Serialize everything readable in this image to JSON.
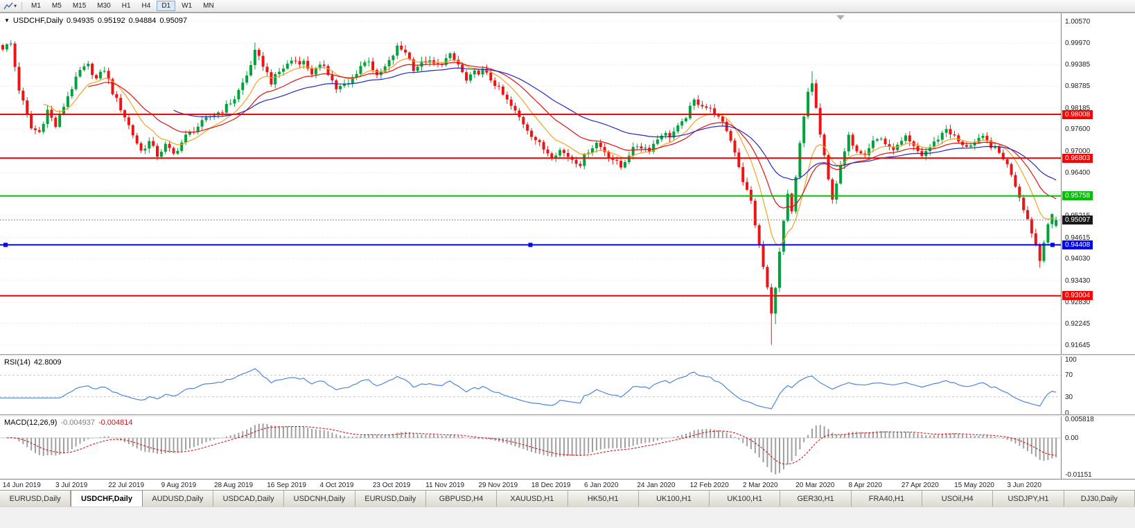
{
  "toolbar": {
    "timeframes": [
      "M1",
      "M5",
      "M15",
      "M30",
      "H1",
      "H4",
      "D1",
      "W1",
      "MN"
    ],
    "active": "D1"
  },
  "chart": {
    "header": {
      "menu_icon": "▼",
      "symbol": "USDCHF,Daily",
      "open": "0.94935",
      "high": "0.95192",
      "low": "0.94884",
      "close": "0.95097"
    },
    "horizontal_lines": [
      {
        "label": "0.98008",
        "price": 0.98008,
        "color": "#ff0000",
        "selected": false
      },
      {
        "label": "0.96803",
        "price": 0.96803,
        "color": "#ff0000",
        "selected": false
      },
      {
        "label": "0.95758",
        "price": 0.95758,
        "color": "#00c000",
        "selected": false
      },
      {
        "label": "0.94408",
        "price": 0.94408,
        "color": "#0000ff",
        "selected": true
      },
      {
        "label": "0.93004",
        "price": 0.93004,
        "color": "#ff0000",
        "selected": false
      }
    ],
    "bid": {
      "label": "0.95097",
      "price": 0.95097,
      "badge_color": "#1a1a1a"
    },
    "colors": {
      "up": "#00a23b",
      "down": "#ee1414",
      "grid": "#dcdcdc",
      "bid_line": "#8a8a8a"
    }
  },
  "chart_data": {
    "type": "candlestick",
    "title": "USDCHF,Daily",
    "ylim": [
      0.91645,
      1.0057
    ],
    "y_tick_labels": [
      "1.00570",
      "0.99970",
      "0.99385",
      "0.98785",
      "0.98185",
      "0.97600",
      "0.97000",
      "0.96400",
      "0.95815",
      "0.95215",
      "0.94615",
      "0.94030",
      "0.93430",
      "0.92830",
      "0.92245",
      "0.91645"
    ],
    "x_tick_labels": [
      "14 Jun 2019",
      "3 Jul 2019",
      "22 Jul 2019",
      "9 Aug 2019",
      "28 Aug 2019",
      "16 Sep 2019",
      "4 Oct 2019",
      "23 Oct 2019",
      "11 Nov 2019",
      "29 Nov 2019",
      "18 Dec 2019",
      "6 Jan 2020",
      "24 Jan 2020",
      "12 Feb 2020",
      "2 Mar 2020",
      "20 Mar 2020",
      "8 Apr 2020",
      "27 Apr 2020",
      "15 May 2020",
      "3 Jun 2020"
    ],
    "num_candles": 260,
    "x_label_first_candle": 2,
    "x_label_candle_step": 13,
    "close_path": [
      [
        0,
        0.9985
      ],
      [
        2,
        0.9995
      ],
      [
        4,
        0.987
      ],
      [
        7,
        0.9762
      ],
      [
        9,
        0.9752
      ],
      [
        11,
        0.9812
      ],
      [
        13,
        0.9768
      ],
      [
        16,
        0.9852
      ],
      [
        19,
        0.992
      ],
      [
        21,
        0.9935
      ],
      [
        23,
        0.9898
      ],
      [
        25,
        0.9925
      ],
      [
        27,
        0.9862
      ],
      [
        30,
        0.9795
      ],
      [
        32,
        0.9745
      ],
      [
        34,
        0.97
      ],
      [
        36,
        0.9725
      ],
      [
        38,
        0.9688
      ],
      [
        40,
        0.9715
      ],
      [
        42,
        0.969
      ],
      [
        45,
        0.974
      ],
      [
        48,
        0.9768
      ],
      [
        51,
        0.9795
      ],
      [
        54,
        0.9812
      ],
      [
        57,
        0.9845
      ],
      [
        60,
        0.9908
      ],
      [
        62,
        0.9972
      ],
      [
        64,
        0.9938
      ],
      [
        66,
        0.989
      ],
      [
        68,
        0.9918
      ],
      [
        71,
        0.995
      ],
      [
        74,
        0.9945
      ],
      [
        76,
        0.9915
      ],
      [
        79,
        0.9938
      ],
      [
        82,
        0.9872
      ],
      [
        85,
        0.9885
      ],
      [
        88,
        0.9935
      ],
      [
        90,
        0.9952
      ],
      [
        92,
        0.9902
      ],
      [
        95,
        0.9945
      ],
      [
        97,
        0.9985
      ],
      [
        99,
        0.9975
      ],
      [
        101,
        0.9928
      ],
      [
        104,
        0.9948
      ],
      [
        107,
        0.9935
      ],
      [
        110,
        0.9962
      ],
      [
        112,
        0.9938
      ],
      [
        114,
        0.9892
      ],
      [
        116,
        0.9915
      ],
      [
        118,
        0.9922
      ],
      [
        121,
        0.9885
      ],
      [
        124,
        0.9838
      ],
      [
        127,
        0.9792
      ],
      [
        130,
        0.9745
      ],
      [
        133,
        0.9705
      ],
      [
        135,
        0.9688
      ],
      [
        137,
        0.9702
      ],
      [
        140,
        0.9678
      ],
      [
        142,
        0.9665
      ],
      [
        144,
        0.9702
      ],
      [
        146,
        0.9722
      ],
      [
        149,
        0.9688
      ],
      [
        152,
        0.9655
      ],
      [
        154,
        0.9692
      ],
      [
        156,
        0.9715
      ],
      [
        159,
        0.9705
      ],
      [
        162,
        0.9748
      ],
      [
        164,
        0.9742
      ],
      [
        167,
        0.9775
      ],
      [
        170,
        0.9838
      ],
      [
        172,
        0.9828
      ],
      [
        175,
        0.9805
      ],
      [
        178,
        0.9758
      ],
      [
        180,
        0.97
      ],
      [
        182,
        0.9618
      ],
      [
        184,
        0.956
      ],
      [
        186,
        0.9438
      ],
      [
        188,
        0.9322
      ],
      [
        189,
        0.9248
      ],
      [
        190,
        0.933
      ],
      [
        192,
        0.9505
      ],
      [
        193,
        0.9575
      ],
      [
        194,
        0.9528
      ],
      [
        196,
        0.9718
      ],
      [
        198,
        0.9862
      ],
      [
        199,
        0.9888
      ],
      [
        201,
        0.9745
      ],
      [
        203,
        0.9618
      ],
      [
        204,
        0.9572
      ],
      [
        206,
        0.9655
      ],
      [
        208,
        0.9738
      ],
      [
        210,
        0.9705
      ],
      [
        212,
        0.9695
      ],
      [
        214,
        0.9728
      ],
      [
        216,
        0.9735
      ],
      [
        218,
        0.9705
      ],
      [
        220,
        0.9712
      ],
      [
        222,
        0.9735
      ],
      [
        224,
        0.9708
      ],
      [
        226,
        0.9688
      ],
      [
        229,
        0.9722
      ],
      [
        232,
        0.9762
      ],
      [
        234,
        0.9738
      ],
      [
        236,
        0.9712
      ],
      [
        239,
        0.9722
      ],
      [
        241,
        0.9735
      ],
      [
        244,
        0.9705
      ],
      [
        246,
        0.9682
      ],
      [
        248,
        0.9638
      ],
      [
        250,
        0.9575
      ],
      [
        252,
        0.9512
      ],
      [
        254,
        0.9442
      ],
      [
        255,
        0.9398
      ],
      [
        256,
        0.9455
      ],
      [
        257,
        0.95
      ],
      [
        258,
        0.9518
      ],
      [
        259,
        0.95097
      ]
    ],
    "wick_overrides": [
      {
        "index": 2,
        "high": 1.0005
      },
      {
        "index": 62,
        "high": 0.9999
      },
      {
        "index": 97,
        "high": 0.9998
      },
      {
        "index": 189,
        "low": 0.9165
      },
      {
        "index": 190,
        "low": 0.9222
      },
      {
        "index": 199,
        "high": 0.992
      },
      {
        "index": 255,
        "low": 0.9378
      }
    ],
    "last_candle": {
      "open": 0.94935,
      "high": 0.95192,
      "low": 0.94884,
      "close": 0.95097
    },
    "moving_averages": [
      {
        "period": 10,
        "color": "#f2a122"
      },
      {
        "period": 21,
        "color": "#e01010"
      },
      {
        "period": 42,
        "color": "#2525c9"
      }
    ],
    "indicators": [
      {
        "type": "RSI",
        "label": "RSI(14)",
        "current": "42.8009",
        "period": 14,
        "levels": [
          70,
          30
        ],
        "range": [
          0,
          100
        ],
        "scale_labels": [
          "100",
          "70",
          "30",
          "0"
        ],
        "color": "#4c86d8"
      },
      {
        "type": "MACD",
        "label": "MACD(12,26,9)",
        "current_main": "-0.004937",
        "current_signal": "-0.004814",
        "fast": 12,
        "slow": 26,
        "signal": 9,
        "scale_labels": [
          "0.005818",
          "0.00",
          "-0.01151"
        ],
        "hist_color": "#9e9e9e",
        "signal_color": "#d40000"
      }
    ]
  },
  "tabs": [
    {
      "label": "EURUSD,Daily",
      "active": false
    },
    {
      "label": "USDCHF,Daily",
      "active": true
    },
    {
      "label": "AUDUSD,Daily",
      "active": false
    },
    {
      "label": "USDCAD,Daily",
      "active": false
    },
    {
      "label": "USDCNH,Daily",
      "active": false
    },
    {
      "label": "EURUSD,Daily",
      "active": false
    },
    {
      "label": "GBPUSD,H4",
      "active": false
    },
    {
      "label": "XAUUSD,H1",
      "active": false
    },
    {
      "label": "HK50,H1",
      "active": false
    },
    {
      "label": "UK100,H1",
      "active": false
    },
    {
      "label": "UK100,H1",
      "active": false
    },
    {
      "label": "GER30,H1",
      "active": false
    },
    {
      "label": "FRA40,H1",
      "active": false
    },
    {
      "label": "USOil,H4",
      "active": false
    },
    {
      "label": "USDJPY,H1",
      "active": false
    },
    {
      "label": "DJ30,Daily",
      "active": false
    }
  ]
}
